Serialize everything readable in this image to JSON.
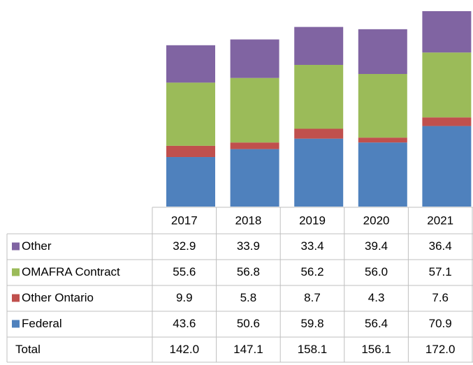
{
  "chart_data": {
    "type": "stacked_bar",
    "categories": [
      "2017",
      "2018",
      "2019",
      "2020",
      "2021"
    ],
    "series": [
      {
        "name": "Federal",
        "color": "#4f81bd",
        "values": [
          43.6,
          50.6,
          59.8,
          56.4,
          70.9
        ],
        "value_labels": [
          "43.6",
          "50.6",
          "59.8",
          "56.4",
          "70.9"
        ]
      },
      {
        "name": "Other Ontario",
        "color": "#c0504d",
        "values": [
          9.9,
          5.8,
          8.7,
          4.3,
          7.6
        ],
        "value_labels": [
          "9.9",
          "5.8",
          "8.7",
          "4.3",
          "7.6"
        ]
      },
      {
        "name": "OMAFRA Contract",
        "color": "#9bbb59",
        "values": [
          55.6,
          56.8,
          56.2,
          56,
          57.1
        ],
        "value_labels": [
          "55.6",
          "56.8",
          "56.2",
          "56.0",
          "57.1"
        ]
      },
      {
        "name": "Other",
        "color": "#8064a2",
        "values": [
          32.9,
          33.9,
          33.4,
          39.4,
          36.4
        ],
        "value_labels": [
          "32.9",
          "33.9",
          "33.4",
          "39.4",
          "36.4"
        ]
      }
    ],
    "total": {
      "name": "Total",
      "values": [
        142,
        147.1,
        158.1,
        156.1,
        172
      ],
      "value_labels": [
        "142.0",
        "147.1",
        "158.1",
        "156.1",
        "172.0"
      ]
    }
  }
}
